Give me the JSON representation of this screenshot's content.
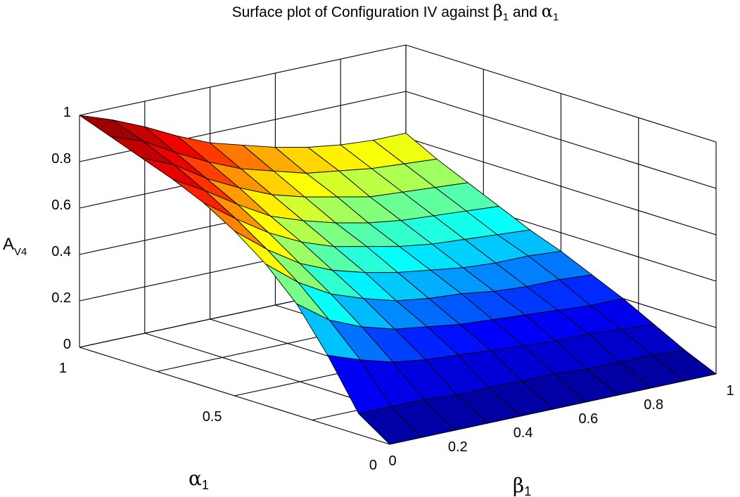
{
  "chart_data": {
    "type": "surface",
    "title": "Surface plot of Configuration IV against β1 and α1",
    "title_parts": {
      "prefix": "Surface plot of Configuration IV against ",
      "beta_symbol": "β",
      "beta_sub": "1",
      "and_word": " and ",
      "alpha_symbol": "α",
      "alpha_sub": "1"
    },
    "xlabel": {
      "symbol": "β",
      "sub": "1"
    },
    "ylabel": {
      "symbol": "α",
      "sub": "1"
    },
    "zlabel": {
      "main": "A",
      "sub": "V4"
    },
    "xlim": [
      0,
      1
    ],
    "ylim": [
      0,
      1
    ],
    "zlim": [
      0,
      1
    ],
    "x_ticks": [
      "0",
      "0.2",
      "0.4",
      "0.6",
      "0.8",
      "1"
    ],
    "y_ticks": [
      "0",
      "0.5",
      "1"
    ],
    "z_ticks": [
      "0",
      "0.2",
      "0.4",
      "0.6",
      "0.8",
      "1"
    ],
    "grid": true,
    "colormap": "jet",
    "colormap_stops": [
      "#00008f",
      "#0000ff",
      "#00ffff",
      "#ffff00",
      "#ff0000",
      "#800000"
    ],
    "x": [
      0,
      0.1,
      0.2,
      0.3,
      0.4,
      0.5,
      0.6,
      0.7,
      0.8,
      0.9,
      1
    ],
    "y": [
      0,
      0.1,
      0.2,
      0.3,
      0.4,
      0.5,
      0.6,
      0.7,
      0.8,
      0.9,
      1
    ],
    "z_rows_by_alpha": [
      [
        0.0,
        0.0,
        0.0,
        0.0,
        0.0,
        0.0,
        0.0,
        0.0,
        0.0,
        0.0,
        0.0
      ],
      [
        0.09,
        0.09,
        0.09,
        0.08,
        0.08,
        0.08,
        0.08,
        0.07,
        0.07,
        0.07,
        0.06
      ],
      [
        0.3,
        0.25,
        0.21,
        0.19,
        0.18,
        0.17,
        0.16,
        0.15,
        0.15,
        0.14,
        0.13
      ],
      [
        0.48,
        0.38,
        0.32,
        0.28,
        0.26,
        0.24,
        0.23,
        0.22,
        0.21,
        0.2,
        0.2
      ],
      [
        0.61,
        0.5,
        0.42,
        0.37,
        0.33,
        0.31,
        0.3,
        0.28,
        0.27,
        0.27,
        0.26
      ],
      [
        0.71,
        0.6,
        0.51,
        0.45,
        0.41,
        0.38,
        0.36,
        0.34,
        0.33,
        0.33,
        0.32
      ],
      [
        0.79,
        0.69,
        0.6,
        0.53,
        0.48,
        0.45,
        0.42,
        0.4,
        0.39,
        0.38,
        0.37
      ],
      [
        0.85,
        0.77,
        0.68,
        0.6,
        0.55,
        0.51,
        0.48,
        0.46,
        0.45,
        0.44,
        0.43
      ],
      [
        0.9,
        0.84,
        0.75,
        0.68,
        0.62,
        0.58,
        0.55,
        0.52,
        0.51,
        0.5,
        0.49
      ],
      [
        0.95,
        0.9,
        0.82,
        0.75,
        0.69,
        0.65,
        0.61,
        0.59,
        0.57,
        0.56,
        0.55
      ],
      [
        1.0,
        0.95,
        0.89,
        0.82,
        0.76,
        0.72,
        0.68,
        0.65,
        0.63,
        0.62,
        0.62
      ]
    ]
  }
}
